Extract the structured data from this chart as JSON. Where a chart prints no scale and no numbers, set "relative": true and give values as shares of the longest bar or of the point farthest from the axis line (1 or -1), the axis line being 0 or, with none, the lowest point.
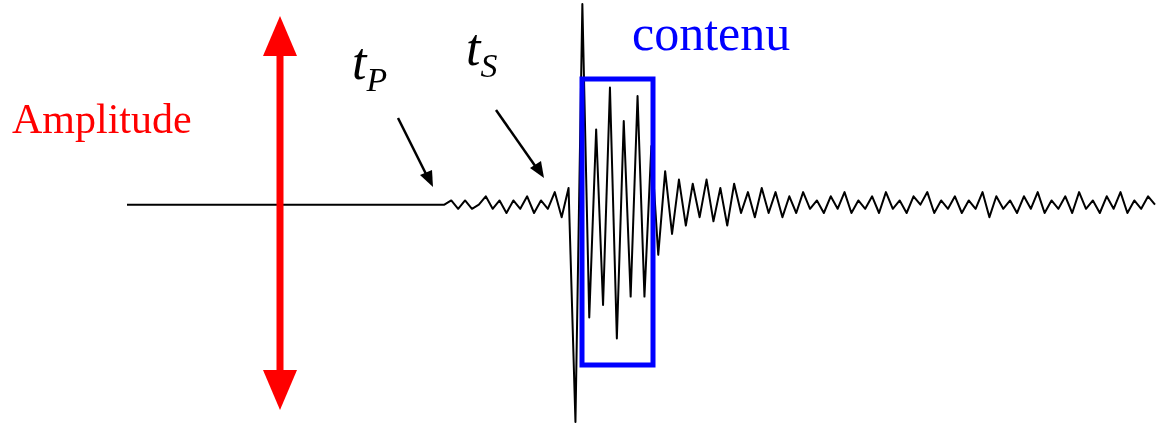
{
  "chart_data": {
    "type": "line",
    "relative": true,
    "annotations": [
      "Amplitude",
      "t$_{P}$",
      "t$_{S}$",
      "contenu"
    ],
    "categories": [
      null,
      null,
      null,
      null,
      null,
      null,
      null,
      null,
      null,
      null,
      null,
      null,
      null,
      null,
      null,
      null,
      null,
      null,
      null,
      null,
      null,
      null,
      null,
      null,
      null,
      null,
      null,
      null,
      null,
      null,
      null,
      null,
      null,
      null,
      null,
      null,
      null,
      null,
      null,
      null,
      null,
      null,
      null,
      null,
      null,
      null,
      null,
      null,
      null,
      null,
      null,
      null,
      null,
      null,
      null,
      null,
      null,
      null,
      null,
      null,
      null,
      null,
      null,
      null,
      null,
      null,
      null,
      null,
      null,
      null,
      null,
      null,
      null,
      null,
      null,
      null,
      null,
      null,
      null,
      null,
      null,
      null,
      null,
      null,
      null,
      null,
      null,
      null,
      null,
      null,
      null,
      null,
      null,
      null,
      null,
      null,
      null,
      null,
      null,
      null,
      null,
      null,
      null,
      null,
      null,
      null,
      null,
      null,
      null,
      null,
      null,
      null,
      null,
      null,
      null,
      null,
      null,
      null,
      null,
      null,
      null,
      null,
      null,
      null,
      null,
      null,
      null,
      null,
      null,
      null,
      null,
      null,
      null,
      null,
      null,
      null,
      null,
      null,
      null,
      null,
      null,
      null,
      null,
      null,
      null,
      null,
      null,
      null,
      null,
      null
    ],
    "series": [
      {
        "color": "#000000",
        "values": [
          0.52,
          0.52,
          0.52,
          0.52,
          0.52,
          0.52,
          0.52,
          0.52,
          0.52,
          0.52,
          0.52,
          0.52,
          0.52,
          0.52,
          0.52,
          0.52,
          0.52,
          0.52,
          0.52,
          0.52,
          0.52,
          0.52,
          0.52,
          0.52,
          0.52,
          0.52,
          0.52,
          0.52,
          0.52,
          0.52,
          0.52,
          0.52,
          0.52,
          0.52,
          0.52,
          0.52,
          0.52,
          0.52,
          0.52,
          0.52,
          0.52,
          0.52,
          0.52,
          0.52,
          0.52,
          0.52,
          0.52,
          0.53,
          0.51,
          0.53,
          0.51,
          0.52,
          0.54,
          0.51,
          0.53,
          0.5,
          0.53,
          0.51,
          0.54,
          0.5,
          0.53,
          0.51,
          0.55,
          0.49,
          0.56,
          0,
          1,
          0.25,
          0.7,
          0.28,
          0.8,
          0.2,
          0.72,
          0.3,
          0.78,
          0.3,
          0.66,
          0.4,
          0.6,
          0.45,
          0.58,
          0.47,
          0.57,
          0.49,
          0.58,
          0.48,
          0.56,
          0.47,
          0.57,
          0.5,
          0.55,
          0.49,
          0.56,
          0.5,
          0.55,
          0.49,
          0.54,
          0.5,
          0.55,
          0.51,
          0.53,
          0.5,
          0.54,
          0.51,
          0.55,
          0.5,
          0.53,
          0.51,
          0.54,
          0.5,
          0.55,
          0.51,
          0.53,
          0.5,
          0.54,
          0.52,
          0.55,
          0.5,
          0.53,
          0.51,
          0.54,
          0.5,
          0.53,
          0.51,
          0.55,
          0.49,
          0.54,
          0.51,
          0.53,
          0.5,
          0.54,
          0.51,
          0.55,
          0.5,
          0.53,
          0.51,
          0.54,
          0.5,
          0.55,
          0.51,
          0.53,
          0.5,
          0.54,
          0.51,
          0.55,
          0.5,
          0.53,
          0.51,
          0.54,
          0.52
        ]
      }
    ]
  }
}
